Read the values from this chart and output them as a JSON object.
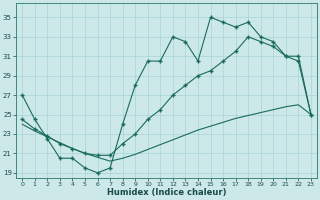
{
  "xlabel": "Humidex (Indice chaleur)",
  "bg_color": "#cce8e8",
  "grid_color": "#a8d4d4",
  "line_color": "#1a6b5a",
  "xlim": [
    -0.5,
    23.5
  ],
  "ylim": [
    18.5,
    36.5
  ],
  "xticks": [
    0,
    1,
    2,
    3,
    4,
    5,
    6,
    7,
    8,
    9,
    10,
    11,
    12,
    13,
    14,
    15,
    16,
    17,
    18,
    19,
    20,
    21,
    22,
    23
  ],
  "yticks": [
    19,
    21,
    23,
    25,
    27,
    29,
    31,
    33,
    35
  ],
  "curve_a_x": [
    0,
    1,
    2,
    3,
    4,
    5,
    6,
    7,
    8,
    9,
    10,
    11,
    12,
    13,
    14,
    15,
    16,
    17,
    18,
    19,
    20,
    21,
    22,
    23
  ],
  "curve_a_y": [
    27.0,
    24.5,
    22.5,
    20.5,
    20.5,
    19.5,
    19.0,
    19.5,
    24.0,
    28.0,
    30.5,
    30.5,
    33.0,
    32.5,
    30.5,
    35.0,
    34.5,
    34.0,
    34.5,
    33.0,
    32.5,
    31.0,
    30.5,
    25.0
  ],
  "curve_b_x": [
    0,
    1,
    2,
    3,
    4,
    5,
    6,
    7,
    8,
    9,
    10,
    11,
    12,
    13,
    14,
    15,
    16,
    17,
    18,
    19,
    20,
    21,
    22,
    23
  ],
  "curve_b_y": [
    24.5,
    23.5,
    22.8,
    22.0,
    21.5,
    21.0,
    20.8,
    20.8,
    22.0,
    23.0,
    24.5,
    25.5,
    27.0,
    28.0,
    29.0,
    29.5,
    30.5,
    31.5,
    33.0,
    32.5,
    32.0,
    31.0,
    31.0,
    25.0
  ],
  "curve_c_x": [
    0,
    1,
    2,
    3,
    4,
    5,
    6,
    7,
    8,
    9,
    10,
    11,
    12,
    13,
    14,
    15,
    16,
    17,
    18,
    19,
    20,
    21,
    22,
    23
  ],
  "curve_c_y": [
    24.0,
    23.3,
    22.7,
    22.1,
    21.5,
    21.0,
    20.6,
    20.2,
    20.5,
    20.9,
    21.4,
    21.9,
    22.4,
    22.9,
    23.4,
    23.8,
    24.2,
    24.6,
    24.9,
    25.2,
    25.5,
    25.8,
    26.0,
    25.0
  ]
}
